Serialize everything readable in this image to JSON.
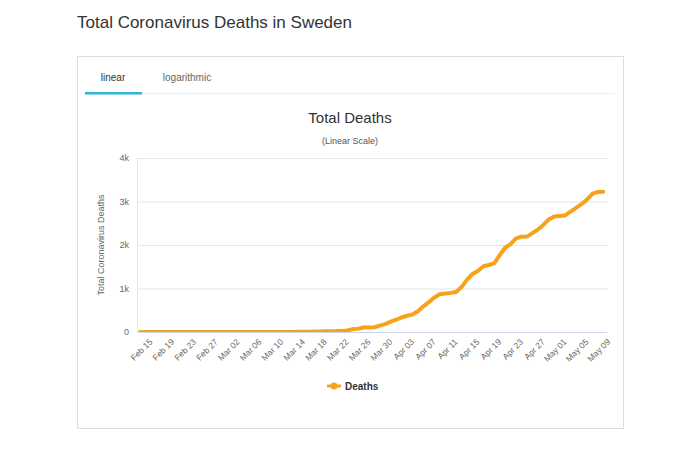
{
  "page_title": "Total Coronavirus Deaths in Sweden",
  "tabs": [
    "linear",
    "logarithmic"
  ],
  "chart_data": {
    "type": "line",
    "title": "Total Deaths",
    "subtitle": "(Linear Scale)",
    "y_label": "Total Coronavirus Deaths",
    "categories": [
      "Feb 15",
      null,
      null,
      null,
      "Feb 19",
      null,
      null,
      null,
      "Feb 23",
      null,
      null,
      null,
      "Feb 27",
      null,
      null,
      null,
      "Mar 02",
      null,
      null,
      null,
      "Mar 06",
      null,
      null,
      null,
      "Mar 10",
      null,
      null,
      null,
      "Mar 14",
      null,
      null,
      null,
      "Mar 18",
      null,
      null,
      null,
      "Mar 22",
      null,
      null,
      null,
      "Mar 26",
      null,
      null,
      null,
      "Mar 30",
      null,
      null,
      null,
      "Apr 03",
      null,
      null,
      null,
      "Apr 07",
      null,
      null,
      null,
      "Apr 11",
      null,
      null,
      null,
      "Apr 15",
      null,
      null,
      null,
      "Apr 19",
      null,
      null,
      null,
      "Apr 23",
      null,
      null,
      null,
      "Apr 27",
      null,
      null,
      null,
      "May 01",
      null,
      null,
      null,
      "May 05",
      null,
      null,
      null,
      "May 09",
      null
    ],
    "series": [
      {
        "name": "Deaths",
        "color": "#f7a21b",
        "values": [
          0,
          0,
          0,
          0,
          0,
          0,
          0,
          0,
          0,
          0,
          0,
          0,
          0,
          0,
          0,
          0,
          0,
          0,
          0,
          0,
          0,
          0,
          0,
          0,
          0,
          1,
          1,
          1,
          2,
          3,
          6,
          7,
          10,
          11,
          16,
          20,
          21,
          25,
          36,
          62,
          77,
          105,
          105,
          110,
          146,
          180,
          239,
          282,
          333,
          373,
          401,
          477,
          591,
          687,
          793,
          870,
          887,
          899,
          919,
          1033,
          1203,
          1333,
          1400,
          1511,
          1540,
          1580,
          1765,
          1937,
          2021,
          2152,
          2192,
          2194,
          2274,
          2355,
          2462,
          2586,
          2653,
          2669,
          2679,
          2769,
          2854,
          2941,
          3040,
          3175,
          3220,
          3225
        ]
      }
    ],
    "ylim": [
      0,
      4000
    ],
    "yticks": [
      0,
      {
        "value": 1000,
        "label": "1k"
      },
      {
        "value": 2000,
        "label": "2k"
      },
      {
        "value": 3000,
        "label": "3k"
      },
      {
        "value": 4000,
        "label": "4k"
      }
    ],
    "grid": true,
    "legend": "bottom"
  }
}
